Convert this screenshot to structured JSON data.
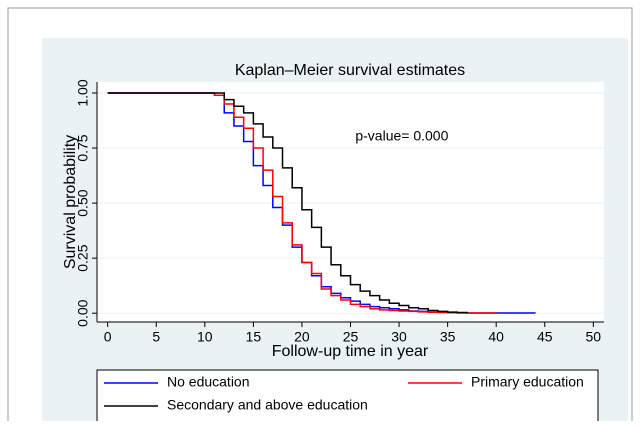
{
  "chart_data": {
    "type": "line",
    "step": "post",
    "title": "Kaplan–Meier survival estimates",
    "x_label": "Follow-up time in year",
    "y_label": "Survival probability",
    "annotation": {
      "text": "p-value= 0.000",
      "x": 25.5,
      "y": 0.8
    },
    "x": [
      0,
      10,
      11,
      12,
      13,
      14,
      15,
      16,
      17,
      18,
      19,
      20,
      21,
      22,
      23,
      24,
      25,
      26,
      27,
      28,
      29,
      30,
      31,
      32,
      33,
      34,
      35,
      36,
      37,
      40,
      44
    ],
    "series": [
      {
        "name": "No education",
        "color": "#0000ff",
        "values": [
          1,
          1,
          0.99,
          0.91,
          0.85,
          0.78,
          0.67,
          0.58,
          0.48,
          0.4,
          0.3,
          0.23,
          0.17,
          0.12,
          0.09,
          0.07,
          0.055,
          0.04,
          0.03,
          0.025,
          0.02,
          0.015,
          0.01,
          0.008,
          0.005,
          0.004,
          0.003,
          0.002,
          0.001,
          0.001,
          0
        ]
      },
      {
        "name": "Primary education",
        "color": "#ff0000",
        "values": [
          1,
          1,
          0.99,
          0.95,
          0.89,
          0.84,
          0.75,
          0.65,
          0.53,
          0.41,
          0.31,
          0.23,
          0.18,
          0.11,
          0.08,
          0.06,
          0.04,
          0.03,
          0.02,
          0.015,
          0.012,
          0.01,
          0.008,
          0.006,
          0.004,
          0.003,
          0.002,
          0.001,
          0.001,
          0,
          null
        ]
      },
      {
        "name": "Secondary and above education",
        "color": "#000000",
        "values": [
          1,
          1,
          1,
          0.97,
          0.94,
          0.91,
          0.86,
          0.8,
          0.75,
          0.66,
          0.57,
          0.47,
          0.39,
          0.3,
          0.22,
          0.17,
          0.13,
          0.1,
          0.08,
          0.06,
          0.045,
          0.035,
          0.025,
          0.02,
          0.012,
          0.008,
          0.005,
          0.003,
          0,
          null,
          null
        ]
      }
    ],
    "xlim": [
      -1.1,
      51.1
    ],
    "xticks": [
      0,
      5,
      10,
      15,
      20,
      25,
      30,
      35,
      40,
      45,
      50
    ],
    "ylim": [
      -0.04,
      1.05
    ],
    "yticks": [
      {
        "value": 0,
        "label": "0.00"
      },
      {
        "value": 0.25,
        "label": "0.25"
      },
      {
        "value": 0.5,
        "label": "0.50"
      },
      {
        "value": 0.75,
        "label": "0.75"
      },
      {
        "value": 1,
        "label": "1.00"
      }
    ],
    "grid": true,
    "legend": "bottom"
  }
}
